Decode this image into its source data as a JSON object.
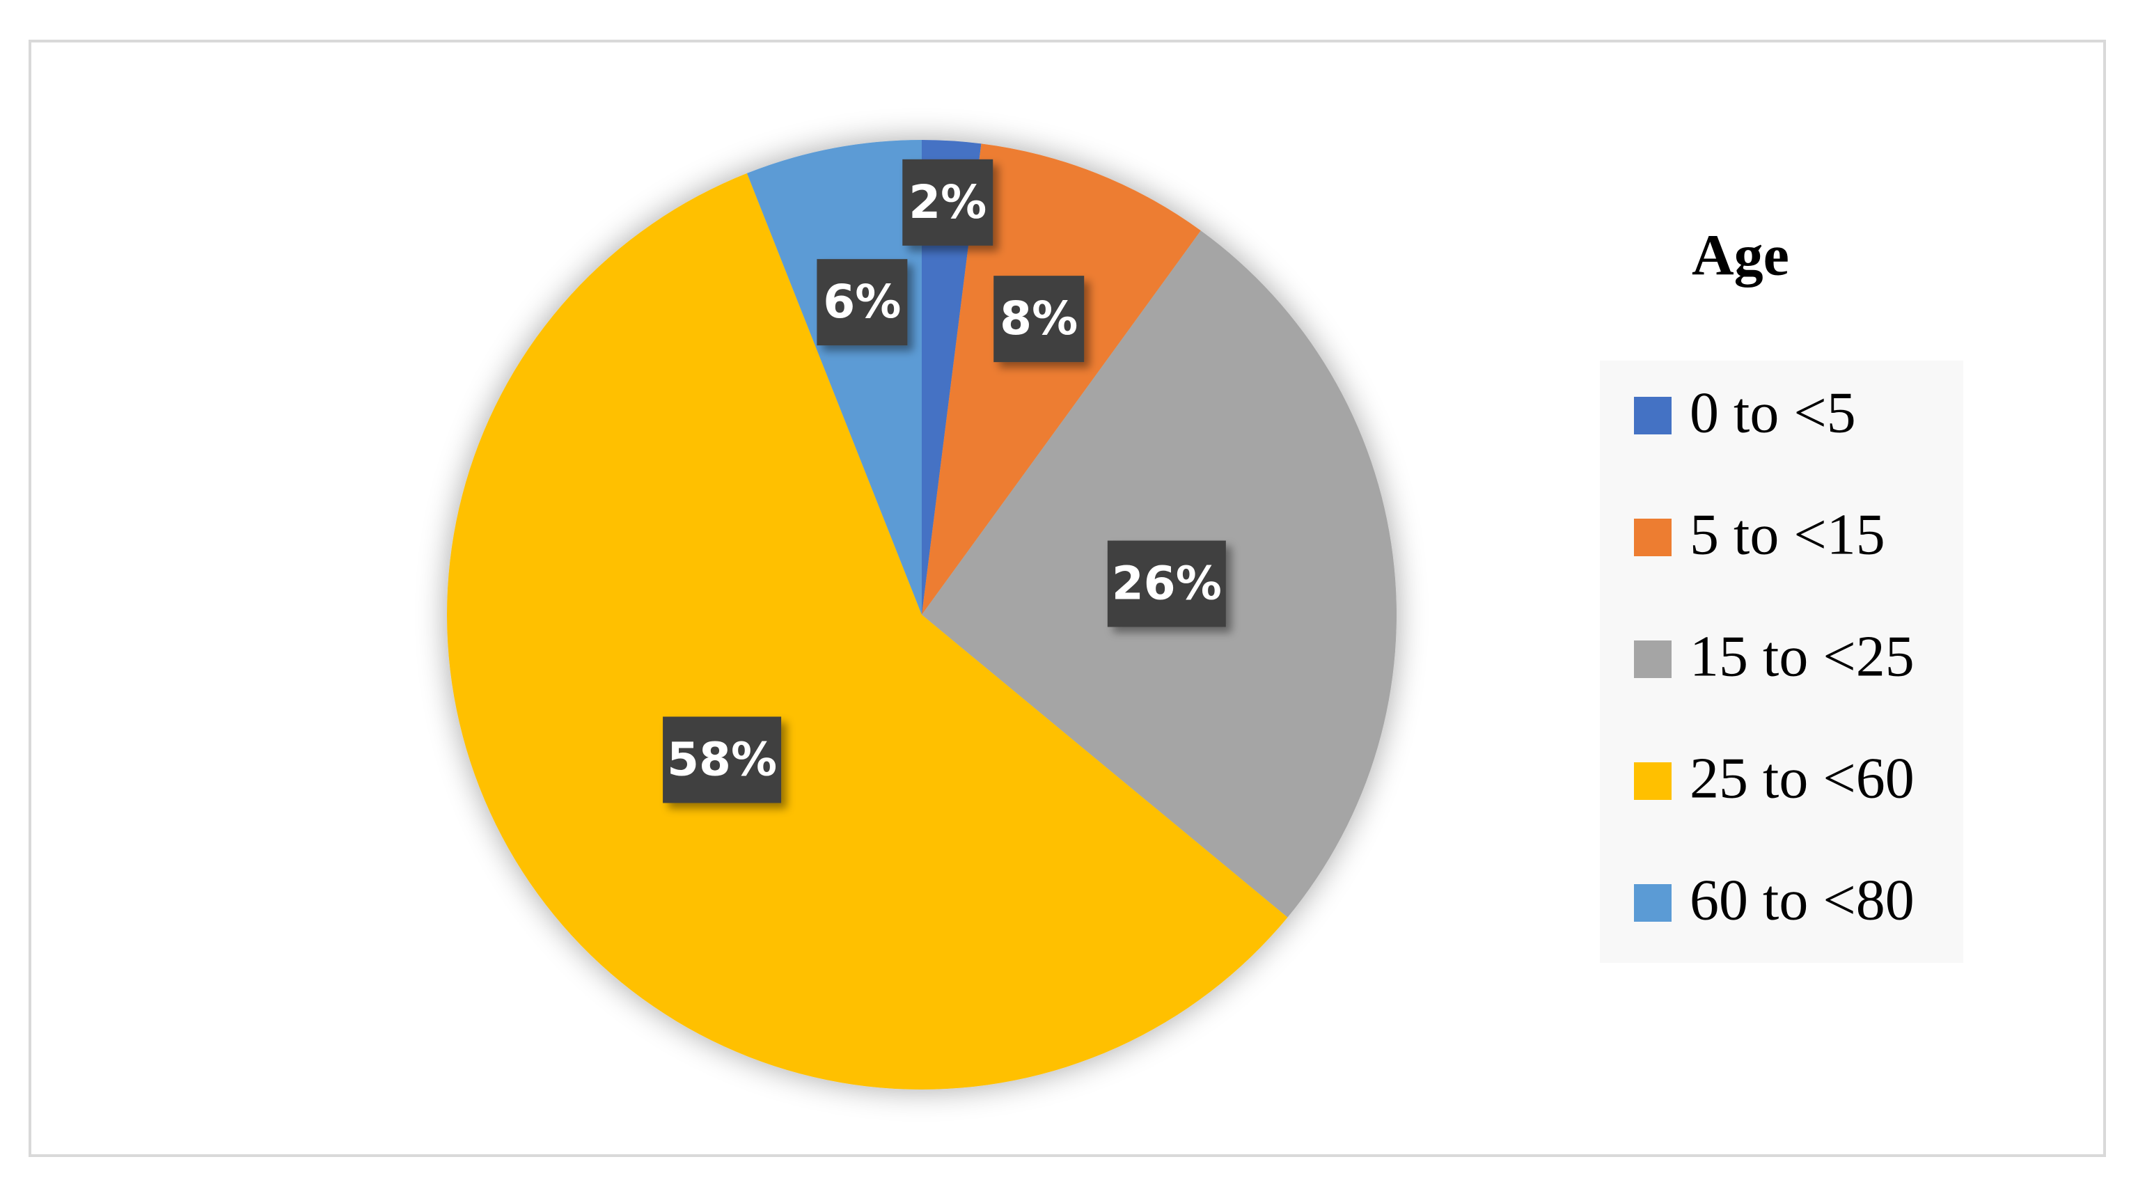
{
  "chart_data": {
    "type": "pie",
    "legend_title": "Age",
    "categories": [
      "0 to <5",
      "5 to <15",
      "15 to <25",
      "25 to <60",
      "60 to <80"
    ],
    "values": [
      2,
      8,
      26,
      58,
      6
    ],
    "value_labels": [
      "2%",
      "8%",
      "26%",
      "58%",
      "6%"
    ],
    "colors": [
      "#4472c4",
      "#ed7d31",
      "#a5a5a5",
      "#ffc000",
      "#5b9bd5"
    ],
    "legend": "right"
  }
}
